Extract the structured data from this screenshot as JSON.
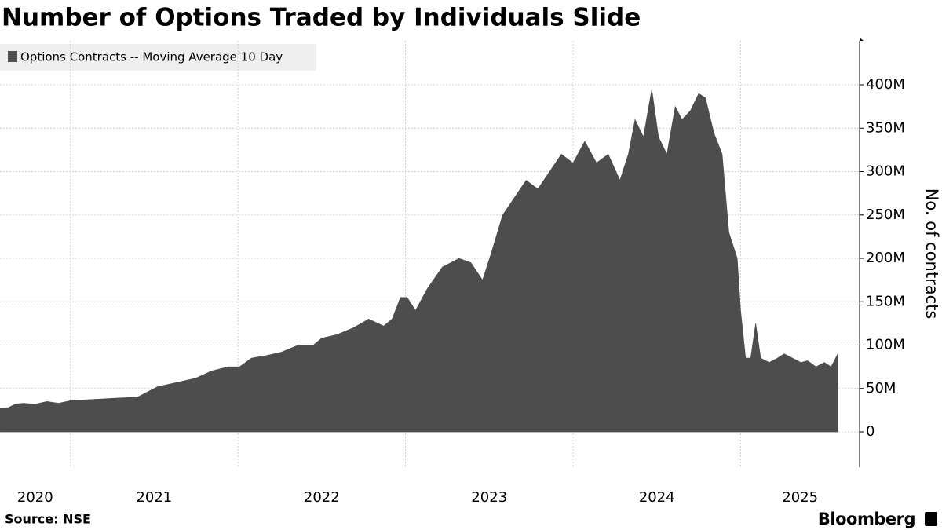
{
  "chart_data": {
    "type": "area",
    "title": "Number of Options Traded by Individuals Slide",
    "y_label": "No. of contracts",
    "source": "Source: NSE",
    "brand": "Bloomberg",
    "legend": "top-left",
    "grid": true,
    "x": [
      2020.58,
      2020.63,
      2020.67,
      2020.72,
      2020.79,
      2020.86,
      2020.93,
      2021.0,
      2021.09,
      2021.19,
      2021.28,
      2021.4,
      2021.52,
      2021.66,
      2021.75,
      2021.84,
      2021.94,
      2022.01,
      2022.08,
      2022.17,
      2022.26,
      2022.36,
      2022.45,
      2022.5,
      2022.59,
      2022.69,
      2022.78,
      2022.87,
      2022.92,
      2022.97,
      2023.01,
      2023.06,
      2023.13,
      2023.22,
      2023.32,
      2023.39,
      2023.46,
      2023.51,
      2023.58,
      2023.65,
      2023.72,
      2023.79,
      2023.86,
      2023.93,
      2024.0,
      2024.07,
      2024.14,
      2024.21,
      2024.28,
      2024.33,
      2024.37,
      2024.42,
      2024.47,
      2024.51,
      2024.56,
      2024.61,
      2024.65,
      2024.7,
      2024.75,
      2024.79,
      2024.84,
      2024.89,
      2024.93,
      2024.98,
      2025.0,
      2025.03,
      2025.06,
      2025.09,
      2025.12,
      2025.17,
      2025.22,
      2025.26,
      2025.31,
      2025.36,
      2025.4,
      2025.45,
      2025.5,
      2025.54,
      2025.58
    ],
    "series": [
      {
        "name": "Options Contracts -- Moving Average 10 Day",
        "color": "#4d4d4d",
        "values": [
          27,
          28,
          32,
          33,
          32,
          35,
          33,
          36,
          37,
          38,
          39,
          40,
          52,
          58,
          62,
          70,
          75,
          75,
          85,
          88,
          92,
          100,
          100,
          108,
          112,
          120,
          130,
          122,
          130,
          155,
          155,
          140,
          165,
          190,
          200,
          195,
          175,
          205,
          250,
          270,
          290,
          280,
          300,
          320,
          310,
          335,
          310,
          320,
          290,
          320,
          360,
          340,
          395,
          340,
          320,
          375,
          360,
          370,
          390,
          385,
          345,
          320,
          230,
          200,
          140,
          85,
          85,
          125,
          85,
          80,
          85,
          90,
          85,
          80,
          82,
          75,
          80,
          75,
          90
        ]
      }
    ],
    "xlim": [
      2020.58,
      2025.71
    ],
    "xticks": [
      2020,
      2021,
      2022,
      2023,
      2024,
      2025
    ],
    "ylim": [
      -40.7,
      450.7
    ],
    "yticks": [
      0,
      {
        "value": 50,
        "label": "50M"
      },
      {
        "value": 100,
        "label": "100M"
      },
      {
        "value": 150,
        "label": "150M"
      },
      {
        "value": 200,
        "label": "200M"
      },
      {
        "value": 250,
        "label": "250M"
      },
      {
        "value": 300,
        "label": "300M"
      },
      {
        "value": 350,
        "label": "350M"
      },
      {
        "value": 400,
        "label": "400M"
      }
    ]
  }
}
